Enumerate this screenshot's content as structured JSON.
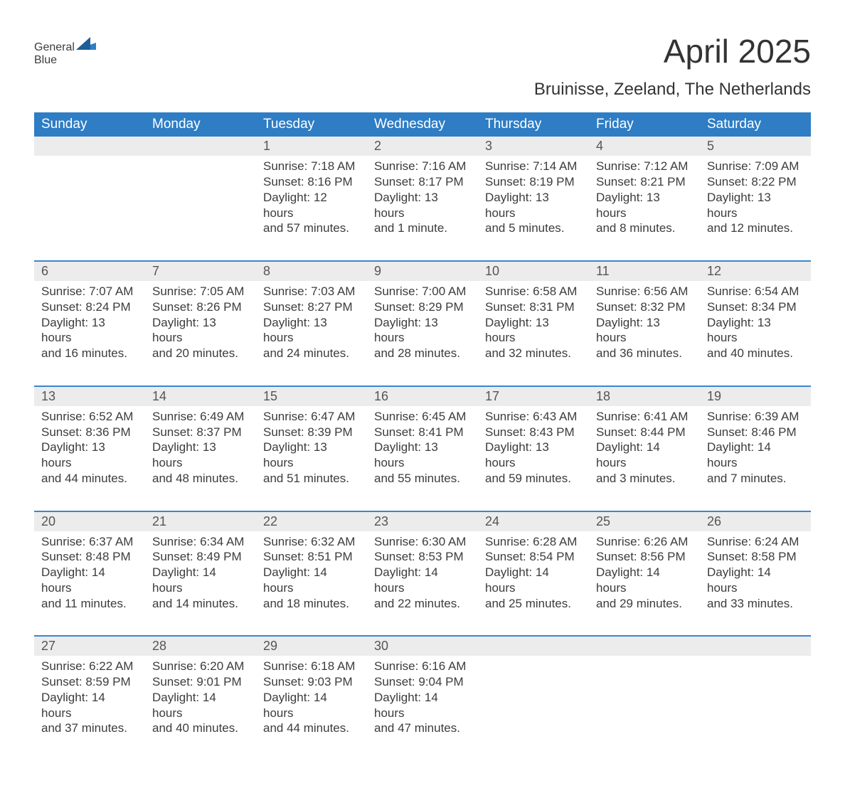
{
  "logo": {
    "word1": "General",
    "word2": "Blue"
  },
  "title": "April 2025",
  "subtitle": "Bruinisse, Zeeland, The Netherlands",
  "colors": {
    "header_blue": "#2f7dc4",
    "accent_blue": "#3a86cf",
    "daynum_row": "#ececec",
    "text_dark": "#333333",
    "text_body": "#3c3c3c",
    "background": "#ffffff"
  },
  "days_of_week": [
    "Sunday",
    "Monday",
    "Tuesday",
    "Wednesday",
    "Thursday",
    "Friday",
    "Saturday"
  ],
  "weeks": [
    [
      null,
      null,
      {
        "n": "1",
        "sunrise": "Sunrise: 7:18 AM",
        "sunset": "Sunset: 8:16 PM",
        "day1": "Daylight: 12 hours",
        "day2": "and 57 minutes."
      },
      {
        "n": "2",
        "sunrise": "Sunrise: 7:16 AM",
        "sunset": "Sunset: 8:17 PM",
        "day1": "Daylight: 13 hours",
        "day2": "and 1 minute."
      },
      {
        "n": "3",
        "sunrise": "Sunrise: 7:14 AM",
        "sunset": "Sunset: 8:19 PM",
        "day1": "Daylight: 13 hours",
        "day2": "and 5 minutes."
      },
      {
        "n": "4",
        "sunrise": "Sunrise: 7:12 AM",
        "sunset": "Sunset: 8:21 PM",
        "day1": "Daylight: 13 hours",
        "day2": "and 8 minutes."
      },
      {
        "n": "5",
        "sunrise": "Sunrise: 7:09 AM",
        "sunset": "Sunset: 8:22 PM",
        "day1": "Daylight: 13 hours",
        "day2": "and 12 minutes."
      }
    ],
    [
      {
        "n": "6",
        "sunrise": "Sunrise: 7:07 AM",
        "sunset": "Sunset: 8:24 PM",
        "day1": "Daylight: 13 hours",
        "day2": "and 16 minutes."
      },
      {
        "n": "7",
        "sunrise": "Sunrise: 7:05 AM",
        "sunset": "Sunset: 8:26 PM",
        "day1": "Daylight: 13 hours",
        "day2": "and 20 minutes."
      },
      {
        "n": "8",
        "sunrise": "Sunrise: 7:03 AM",
        "sunset": "Sunset: 8:27 PM",
        "day1": "Daylight: 13 hours",
        "day2": "and 24 minutes."
      },
      {
        "n": "9",
        "sunrise": "Sunrise: 7:00 AM",
        "sunset": "Sunset: 8:29 PM",
        "day1": "Daylight: 13 hours",
        "day2": "and 28 minutes."
      },
      {
        "n": "10",
        "sunrise": "Sunrise: 6:58 AM",
        "sunset": "Sunset: 8:31 PM",
        "day1": "Daylight: 13 hours",
        "day2": "and 32 minutes."
      },
      {
        "n": "11",
        "sunrise": "Sunrise: 6:56 AM",
        "sunset": "Sunset: 8:32 PM",
        "day1": "Daylight: 13 hours",
        "day2": "and 36 minutes."
      },
      {
        "n": "12",
        "sunrise": "Sunrise: 6:54 AM",
        "sunset": "Sunset: 8:34 PM",
        "day1": "Daylight: 13 hours",
        "day2": "and 40 minutes."
      }
    ],
    [
      {
        "n": "13",
        "sunrise": "Sunrise: 6:52 AM",
        "sunset": "Sunset: 8:36 PM",
        "day1": "Daylight: 13 hours",
        "day2": "and 44 minutes."
      },
      {
        "n": "14",
        "sunrise": "Sunrise: 6:49 AM",
        "sunset": "Sunset: 8:37 PM",
        "day1": "Daylight: 13 hours",
        "day2": "and 48 minutes."
      },
      {
        "n": "15",
        "sunrise": "Sunrise: 6:47 AM",
        "sunset": "Sunset: 8:39 PM",
        "day1": "Daylight: 13 hours",
        "day2": "and 51 minutes."
      },
      {
        "n": "16",
        "sunrise": "Sunrise: 6:45 AM",
        "sunset": "Sunset: 8:41 PM",
        "day1": "Daylight: 13 hours",
        "day2": "and 55 minutes."
      },
      {
        "n": "17",
        "sunrise": "Sunrise: 6:43 AM",
        "sunset": "Sunset: 8:43 PM",
        "day1": "Daylight: 13 hours",
        "day2": "and 59 minutes."
      },
      {
        "n": "18",
        "sunrise": "Sunrise: 6:41 AM",
        "sunset": "Sunset: 8:44 PM",
        "day1": "Daylight: 14 hours",
        "day2": "and 3 minutes."
      },
      {
        "n": "19",
        "sunrise": "Sunrise: 6:39 AM",
        "sunset": "Sunset: 8:46 PM",
        "day1": "Daylight: 14 hours",
        "day2": "and 7 minutes."
      }
    ],
    [
      {
        "n": "20",
        "sunrise": "Sunrise: 6:37 AM",
        "sunset": "Sunset: 8:48 PM",
        "day1": "Daylight: 14 hours",
        "day2": "and 11 minutes."
      },
      {
        "n": "21",
        "sunrise": "Sunrise: 6:34 AM",
        "sunset": "Sunset: 8:49 PM",
        "day1": "Daylight: 14 hours",
        "day2": "and 14 minutes."
      },
      {
        "n": "22",
        "sunrise": "Sunrise: 6:32 AM",
        "sunset": "Sunset: 8:51 PM",
        "day1": "Daylight: 14 hours",
        "day2": "and 18 minutes."
      },
      {
        "n": "23",
        "sunrise": "Sunrise: 6:30 AM",
        "sunset": "Sunset: 8:53 PM",
        "day1": "Daylight: 14 hours",
        "day2": "and 22 minutes."
      },
      {
        "n": "24",
        "sunrise": "Sunrise: 6:28 AM",
        "sunset": "Sunset: 8:54 PM",
        "day1": "Daylight: 14 hours",
        "day2": "and 25 minutes."
      },
      {
        "n": "25",
        "sunrise": "Sunrise: 6:26 AM",
        "sunset": "Sunset: 8:56 PM",
        "day1": "Daylight: 14 hours",
        "day2": "and 29 minutes."
      },
      {
        "n": "26",
        "sunrise": "Sunrise: 6:24 AM",
        "sunset": "Sunset: 8:58 PM",
        "day1": "Daylight: 14 hours",
        "day2": "and 33 minutes."
      }
    ],
    [
      {
        "n": "27",
        "sunrise": "Sunrise: 6:22 AM",
        "sunset": "Sunset: 8:59 PM",
        "day1": "Daylight: 14 hours",
        "day2": "and 37 minutes."
      },
      {
        "n": "28",
        "sunrise": "Sunrise: 6:20 AM",
        "sunset": "Sunset: 9:01 PM",
        "day1": "Daylight: 14 hours",
        "day2": "and 40 minutes."
      },
      {
        "n": "29",
        "sunrise": "Sunrise: 6:18 AM",
        "sunset": "Sunset: 9:03 PM",
        "day1": "Daylight: 14 hours",
        "day2": "and 44 minutes."
      },
      {
        "n": "30",
        "sunrise": "Sunrise: 6:16 AM",
        "sunset": "Sunset: 9:04 PM",
        "day1": "Daylight: 14 hours",
        "day2": "and 47 minutes."
      },
      null,
      null,
      null
    ]
  ]
}
